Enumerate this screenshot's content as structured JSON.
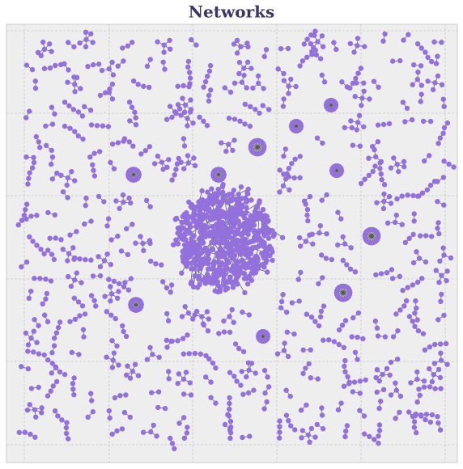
{
  "title": "Networks"
}
